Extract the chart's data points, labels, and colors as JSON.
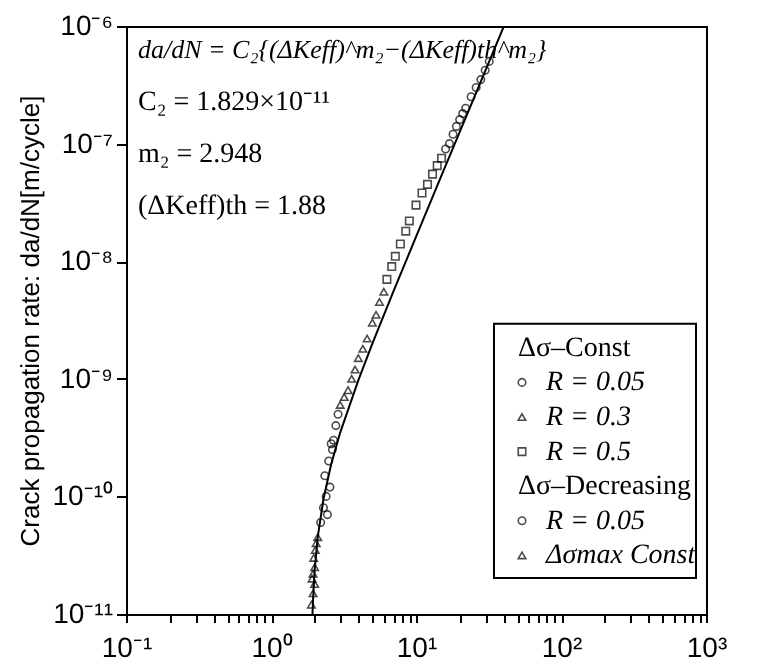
{
  "chart_data": {
    "type": "scatter",
    "ylabel": "Crack propagation rate: da/dN[m/cycle]",
    "log": "xy",
    "xlim": [
      0.1,
      1000
    ],
    "ylim": [
      1e-11,
      1e-06
    ],
    "xticks": [
      {
        "value": 0.1,
        "label": "10⁻¹"
      },
      {
        "value": 1,
        "label": "10⁰"
      },
      {
        "value": 10,
        "label": "10¹"
      },
      {
        "value": 100,
        "label": "10²"
      },
      {
        "value": 1000,
        "label": "10³"
      },
      {
        "value": 0.2,
        "label": null
      },
      {
        "value": 0.3,
        "label": null
      },
      {
        "value": 0.4,
        "label": null
      },
      {
        "value": 0.5,
        "label": null
      },
      {
        "value": 0.6,
        "label": null
      },
      {
        "value": 0.7,
        "label": null
      },
      {
        "value": 0.8,
        "label": null
      },
      {
        "value": 0.9,
        "label": null
      },
      {
        "value": 2,
        "label": null
      },
      {
        "value": 3,
        "label": null
      },
      {
        "value": 4,
        "label": null
      },
      {
        "value": 5,
        "label": null
      },
      {
        "value": 6,
        "label": null
      },
      {
        "value": 7,
        "label": null
      },
      {
        "value": 8,
        "label": null
      },
      {
        "value": 9,
        "label": null
      },
      {
        "value": 20,
        "label": null
      },
      {
        "value": 30,
        "label": null
      },
      {
        "value": 40,
        "label": null
      },
      {
        "value": 50,
        "label": null
      },
      {
        "value": 60,
        "label": null
      },
      {
        "value": 70,
        "label": null
      },
      {
        "value": 80,
        "label": null
      },
      {
        "value": 90,
        "label": null
      },
      {
        "value": 200,
        "label": null
      },
      {
        "value": 300,
        "label": null
      },
      {
        "value": 400,
        "label": null
      },
      {
        "value": 500,
        "label": null
      },
      {
        "value": 600,
        "label": null
      },
      {
        "value": 700,
        "label": null
      },
      {
        "value": 800,
        "label": null
      },
      {
        "value": 900,
        "label": null
      }
    ],
    "yticks": [
      {
        "value": 1e-11,
        "label": "10⁻¹¹"
      },
      {
        "value": 1e-10,
        "label": "10⁻¹⁰"
      },
      {
        "value": 1e-09,
        "label": "10⁻⁹"
      },
      {
        "value": 1e-08,
        "label": "10⁻⁸"
      },
      {
        "value": 1e-07,
        "label": "10⁻⁷"
      },
      {
        "value": 1e-06,
        "label": "10⁻⁶"
      }
    ],
    "grid": false,
    "legend": "bottom right",
    "annotations": [
      "da/dN = C₂{(ΔKeff)^m₂−(ΔKeff)th^m₂}",
      "C₂ = 1.829×10⁻¹¹",
      "m₂ = 2.948",
      "(ΔKeff)th = 1.88",
      "Δσ–Const",
      "Δσ–Decreasing"
    ],
    "series": [
      {
        "name": "R = 0.05",
        "color": "#000000",
        "marker": "circle",
        "x": [
          16,
          17,
          18,
          19,
          20,
          21,
          22,
          24,
          26,
          28,
          30,
          32
        ],
        "values": [
          9e-08,
          1e-07,
          1.2e-07,
          1.4e-07,
          1.6e-07,
          1.8e-07,
          2e-07,
          2.5e-07,
          3e-07,
          3.5e-07,
          4.2e-07,
          5e-07
        ]
      },
      {
        "name": "R = 0.3",
        "color": "#000000",
        "marker": "triangle",
        "x": [
          3.0,
          3.2,
          3.4,
          3.6,
          3.8,
          4.0,
          4.3,
          4.6,
          5.0,
          5.3,
          5.6,
          6.0
        ],
        "values": [
          6e-10,
          7e-10,
          8e-10,
          1e-09,
          1.2e-09,
          1.5e-09,
          1.8e-09,
          2.2e-09,
          3e-09,
          3.5e-09,
          4.5e-09,
          5.5e-09
        ]
      },
      {
        "name": "R = 0.5",
        "color": "#000000",
        "marker": "square",
        "x": [
          6.3,
          6.8,
          7.2,
          7.8,
          8.5,
          9.0,
          10,
          11,
          12,
          13,
          14,
          15
        ],
        "values": [
          7e-09,
          9e-09,
          1.1e-08,
          1.4e-08,
          1.8e-08,
          2.2e-08,
          3e-08,
          3.8e-08,
          4.5e-08,
          5.5e-08,
          6.5e-08,
          7.5e-08
        ]
      },
      {
        "name": "R = 0.05",
        "color": "#000000",
        "marker": "circle",
        "x": [
          2.2,
          2.3,
          2.4,
          2.35,
          2.5,
          2.45,
          2.6,
          2.55,
          2.7,
          2.65,
          2.8,
          2.9
        ],
        "values": [
          6e-11,
          8e-11,
          1e-10,
          1.5e-10,
          2e-10,
          7e-11,
          2.8e-10,
          1.2e-10,
          3e-10,
          2.5e-10,
          4e-10,
          5e-10
        ]
      },
      {
        "name": "Δσmax Const",
        "color": "#000000",
        "marker": "triangle",
        "x": [
          1.9,
          1.95,
          1.92,
          2.0,
          1.97,
          2.02,
          1.95,
          2.05,
          2.0,
          2.1
        ],
        "values": [
          1.2e-11,
          1.5e-11,
          2e-11,
          2.5e-11,
          3e-11,
          3.5e-11,
          2.2e-11,
          4e-11,
          1.8e-11,
          4.5e-11
        ]
      },
      {
        "type": "line",
        "color": "#000000",
        "line_style": "solid",
        "marker": "none",
        "x": [
          1.933,
          1.95,
          2,
          2.1,
          2.3,
          2.6,
          3,
          4,
          5,
          7,
          10,
          15,
          20,
          30,
          40
        ],
        "values": [
          1e-11,
          1.34e-11,
          2.36e-11,
          4.5e-11,
          9.5e-11,
          1.88e-10,
          3.49e-10,
          9.7e-10,
          1.99e-09,
          5.56e-09,
          1.61e-08,
          5.36e-08,
          1.25e-07,
          4.14e-07,
          9.67e-07
        ]
      }
    ]
  }
}
